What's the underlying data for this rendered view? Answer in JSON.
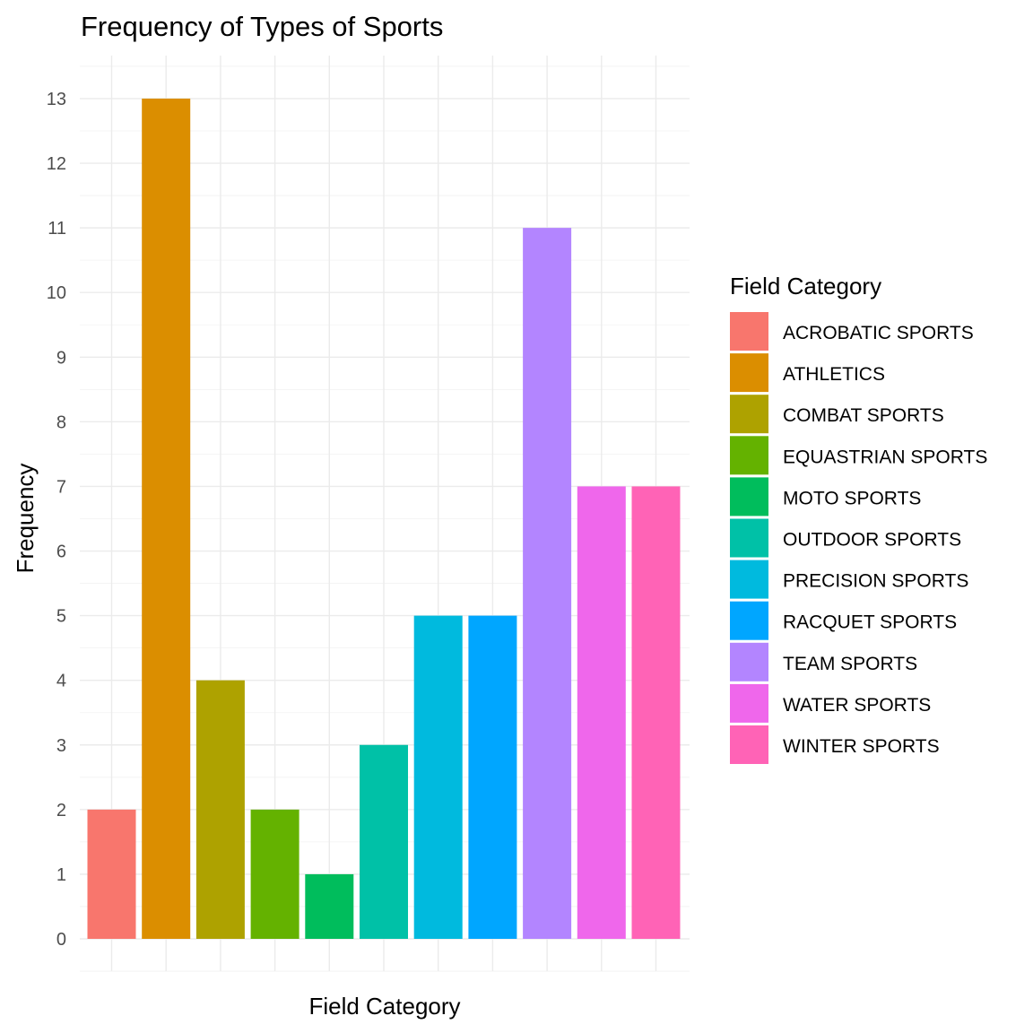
{
  "chart_data": {
    "type": "bar",
    "title": "Frequency of Types of Sports",
    "xlabel": "Field Category",
    "ylabel": "Frequency",
    "ylim": [
      0,
      13
    ],
    "y_ticks": [
      0,
      1,
      2,
      3,
      4,
      5,
      6,
      7,
      8,
      9,
      10,
      11,
      12,
      13
    ],
    "categories": [
      "ACROBATIC SPORTS",
      "ATHLETICS",
      "COMBAT SPORTS",
      "EQUASTRIAN SPORTS",
      "MOTO SPORTS",
      "OUTDOOR SPORTS",
      "PRECISION SPORTS",
      "RACQUET SPORTS",
      "TEAM SPORTS",
      "WATER SPORTS",
      "WINTER SPORTS"
    ],
    "values": [
      2,
      13,
      4,
      2,
      1,
      3,
      5,
      5,
      11,
      7,
      7
    ],
    "colors": [
      "#F8766D",
      "#DB8E00",
      "#AEA200",
      "#64B200",
      "#00BD5C",
      "#00C1A7",
      "#00BADE",
      "#00A6FF",
      "#B385FF",
      "#EF67EB",
      "#FF63B6"
    ],
    "legend": {
      "title": "Field Category",
      "position": "right"
    },
    "grid": true
  }
}
